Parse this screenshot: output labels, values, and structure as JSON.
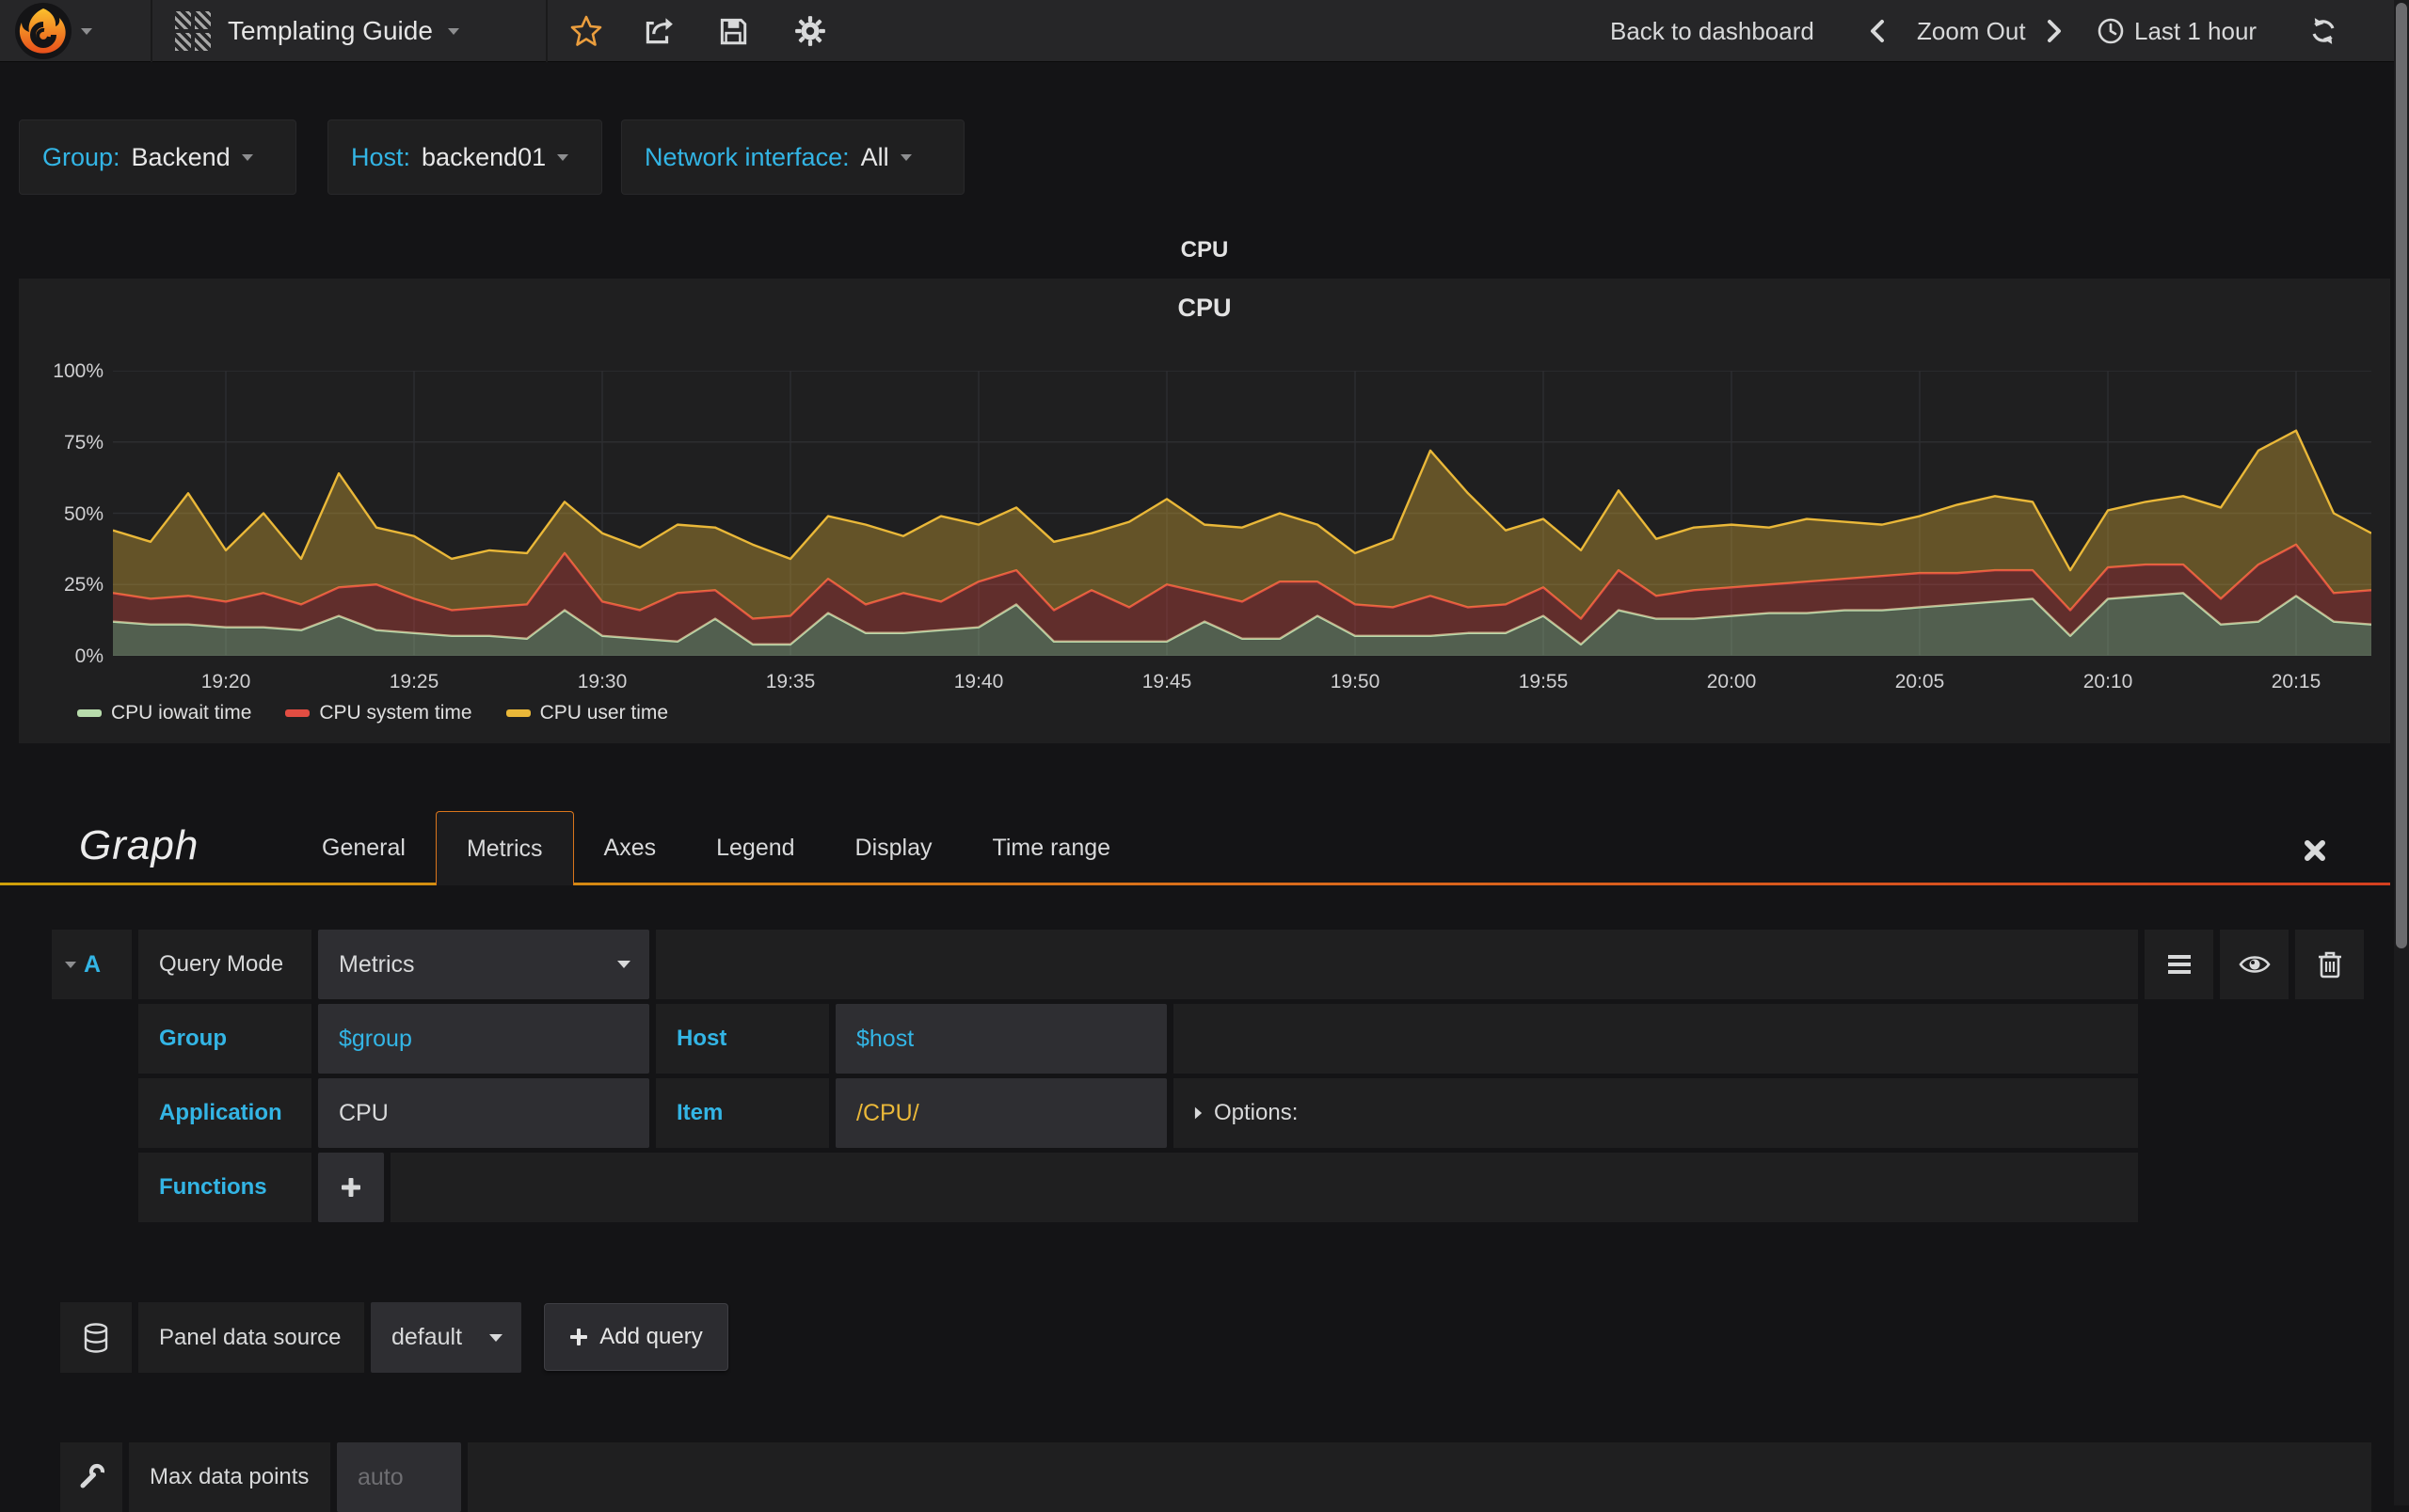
{
  "navbar": {
    "dashboard_title": "Templating Guide",
    "back_to_dashboard": "Back to dashboard",
    "zoom_out": "Zoom Out",
    "time_range": "Last 1 hour"
  },
  "variables": [
    {
      "label": "Group:",
      "value": "Backend"
    },
    {
      "label": "Host:",
      "value": "backend01"
    },
    {
      "label": "Network interface:",
      "value": "All"
    }
  ],
  "row_title": "CPU",
  "panel": {
    "title": "CPU"
  },
  "chart_data": {
    "type": "area",
    "stacked": true,
    "title": "CPU",
    "ylabel": "",
    "xlabel": "",
    "ylim": [
      0,
      100
    ],
    "grid": true,
    "legend_position": "bottom-left",
    "y_ticks": [
      "0%",
      "25%",
      "50%",
      "75%",
      "100%"
    ],
    "x_ticks": [
      "19:20",
      "19:25",
      "19:30",
      "19:35",
      "19:40",
      "19:45",
      "19:50",
      "19:55",
      "20:00",
      "20:05",
      "20:10",
      "20:15"
    ],
    "x_tick_minutes": [
      3,
      8,
      13,
      18,
      23,
      28,
      33,
      38,
      43,
      48,
      53,
      58
    ],
    "x_range_minutes": [
      0,
      60
    ],
    "series": [
      {
        "name": "CPU iowait time",
        "color": "#b7dbab",
        "values": [
          12,
          11,
          11,
          10,
          10,
          9,
          14,
          9,
          8,
          7,
          7,
          6,
          16,
          7,
          6,
          5,
          13,
          4,
          4,
          15,
          8,
          8,
          9,
          10,
          18,
          5,
          5,
          5,
          5,
          12,
          6,
          6,
          14,
          7,
          7,
          7,
          8,
          8,
          14,
          4,
          16,
          13,
          13,
          14,
          15,
          15,
          16,
          16,
          17,
          18,
          19,
          20,
          7,
          20,
          21,
          22,
          11,
          12,
          21,
          12,
          11
        ]
      },
      {
        "name": "CPU system time",
        "color": "#e24d42",
        "values": [
          10,
          9,
          10,
          9,
          12,
          9,
          10,
          16,
          12,
          9,
          10,
          12,
          20,
          12,
          10,
          17,
          10,
          9,
          10,
          12,
          10,
          14,
          10,
          16,
          12,
          11,
          18,
          12,
          20,
          10,
          13,
          20,
          12,
          11,
          10,
          14,
          9,
          10,
          10,
          9,
          14,
          8,
          10,
          10,
          10,
          11,
          11,
          12,
          12,
          11,
          11,
          10,
          9,
          11,
          11,
          10,
          9,
          20,
          18,
          10,
          12
        ]
      },
      {
        "name": "CPU user time",
        "color": "#eab839",
        "values": [
          22,
          20,
          36,
          18,
          28,
          16,
          40,
          20,
          22,
          18,
          20,
          18,
          18,
          24,
          22,
          24,
          22,
          26,
          20,
          22,
          28,
          20,
          30,
          20,
          22,
          24,
          20,
          30,
          30,
          24,
          26,
          24,
          20,
          18,
          24,
          51,
          40,
          26,
          24,
          24,
          28,
          20,
          22,
          22,
          20,
          22,
          20,
          18,
          20,
          24,
          26,
          24,
          14,
          20,
          22,
          24,
          32,
          40,
          40,
          28,
          20
        ]
      }
    ]
  },
  "editor": {
    "panel_type_title": "Graph",
    "tabs": [
      "General",
      "Metrics",
      "Axes",
      "Legend",
      "Display",
      "Time range"
    ],
    "active_tab": "Metrics",
    "query": {
      "ref_letter": "A",
      "query_mode_label": "Query Mode",
      "query_mode_value": "Metrics",
      "group_label": "Group",
      "group_value": "$group",
      "host_label": "Host",
      "host_value": "$host",
      "application_label": "Application",
      "application_value": "CPU",
      "item_label": "Item",
      "item_value": "/CPU/",
      "options_label": "Options:",
      "functions_label": "Functions"
    },
    "datasource": {
      "label": "Panel data source",
      "value": "default",
      "add_query_label": "Add query"
    },
    "max_data_points": {
      "label": "Max data points",
      "placeholder": "auto"
    }
  },
  "icons": {
    "grafana-logo": "flame-spiral",
    "dashboard-icon": "hatched-grid",
    "star-icon": "star-outline",
    "share-icon": "box-arrow",
    "save-icon": "floppy-disk",
    "settings-icon": "gear",
    "chevron-left-icon": "angle-left",
    "chevron-right-icon": "angle-right",
    "clock-icon": "clock",
    "refresh-icon": "circular-arrows",
    "menu-icon": "hamburger",
    "eye-icon": "eye",
    "trash-icon": "trash-can",
    "datasource-icon": "database-cylinder",
    "wrench-icon": "wrench",
    "plus-icon": "plus",
    "close-icon": "cross"
  },
  "colors": {
    "accent_blue": "#33b5e5",
    "series_green": "#b7dbab",
    "series_red": "#e24d42",
    "series_yellow": "#eab839",
    "star_orange": "#eb9e3e",
    "tab_gradient_left": "#cfa00a",
    "tab_gradient_right": "#d4401f"
  }
}
